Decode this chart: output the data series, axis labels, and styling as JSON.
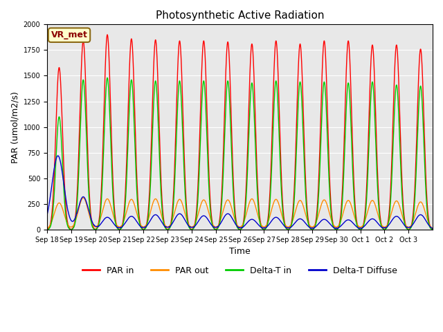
{
  "title": "Photosynthetic Active Radiation",
  "ylabel": "PAR (umol/m2/s)",
  "xlabel": "Time",
  "watermark": "VR_met",
  "ylim": [
    0,
    2000
  ],
  "background_color": "#e8e8e8",
  "legend": [
    "PAR in",
    "PAR out",
    "Delta-T in",
    "Delta-T Diffuse"
  ],
  "legend_colors": [
    "#ff0000",
    "#ff8c00",
    "#00cc00",
    "#0000cc"
  ],
  "x_tick_labels": [
    "Sep 18",
    "Sep 19",
    "Sep 20",
    "Sep 21",
    "Sep 22",
    "Sep 23",
    "Sep 24",
    "Sep 25",
    "Sep 26",
    "Sep 27",
    "Sep 28",
    "Sep 29",
    "Sep 30",
    "Oct 1",
    "Oct 2",
    "Oct 3"
  ],
  "num_days": 16,
  "day_peaks_PAR_in": [
    1580,
    1840,
    1900,
    1860,
    1850,
    1840,
    1840,
    1830,
    1810,
    1840,
    1810,
    1840,
    1840,
    1800,
    1800,
    1760
  ],
  "day_peaks_PAR_out": [
    260,
    310,
    300,
    295,
    300,
    295,
    290,
    290,
    300,
    295,
    285,
    290,
    285,
    285,
    280,
    270
  ],
  "day_peaks_delta_t_in": [
    1100,
    1460,
    1480,
    1460,
    1450,
    1450,
    1450,
    1450,
    1430,
    1450,
    1440,
    1440,
    1430,
    1440,
    1410,
    1400
  ],
  "day_peaks_delta_t_diffuse": [
    720,
    320,
    120,
    130,
    145,
    155,
    135,
    155,
    100,
    120,
    105,
    100,
    95,
    105,
    130,
    145
  ]
}
